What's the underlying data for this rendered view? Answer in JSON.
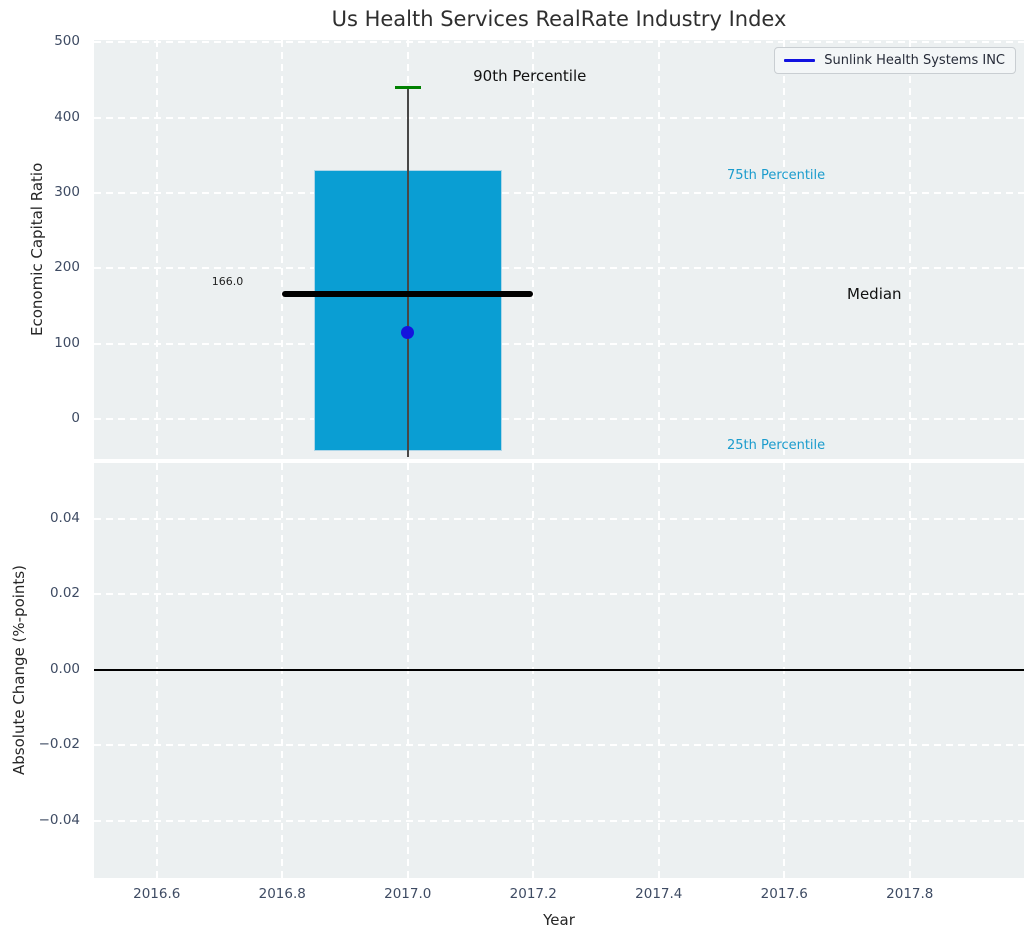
{
  "title": "Us Health Services RealRate Industry Index",
  "xlabel": "Year",
  "legend": {
    "label": "Sunlink Health Systems INC",
    "line_color": "#1212e0"
  },
  "colors": {
    "figure_bg": "#ffffff",
    "plot_bg": "#ecf0f1",
    "grid": "#ffffff",
    "bar_fill": "#0a9ed3",
    "bar_edge": "#aed6e8",
    "median_line": "#000000",
    "whisker": "#474747",
    "p90_cap": "#008000",
    "marker": "#1414dd",
    "percentile_text": "#1b9ccd",
    "tick_text": "#3e4b63",
    "zero_line": "#000000"
  },
  "top_plot": {
    "ylabel": "Economic Capital Ratio",
    "ytick_values": [
      0,
      100,
      200,
      300,
      400,
      500
    ],
    "ytick_labels": [
      "0",
      "100",
      "200",
      "300",
      "400",
      "500"
    ],
    "ylim": [
      -53,
      503
    ],
    "annotations": {
      "p90": "90th Percentile",
      "p75": "75th Percentile",
      "median": "Median",
      "p25": "25th Percentile",
      "median_value": "166.0"
    }
  },
  "bottom_plot": {
    "ylabel": "Absolute Change (%-points)",
    "ytick_values": [
      0.04,
      0.02,
      0,
      -0.02,
      -0.04
    ],
    "ytick_labels": [
      "0.04",
      "0.02",
      "0.00",
      "−0.02",
      "−0.04"
    ],
    "ylim": [
      -0.0551,
      0.0548
    ],
    "zero_value": 0
  },
  "x_axis": {
    "tick_values": [
      2016.6,
      2016.8,
      2017.0,
      2017.2,
      2017.4,
      2017.6,
      2017.8
    ],
    "tick_labels": [
      "2016.6",
      "2016.8",
      "2017.0",
      "2017.2",
      "2017.4",
      "2017.6",
      "2017.8"
    ],
    "xlim": [
      2016.5,
      2017.982
    ]
  },
  "chart_data": [
    {
      "type": "box",
      "title": "Us Health Services RealRate Industry Index",
      "xlabel": "Year",
      "ylabel": "Economic Capital Ratio",
      "xlim": [
        2016.5,
        2017.982
      ],
      "ylim": [
        -53,
        503
      ],
      "xticks": [
        2016.6,
        2016.8,
        2017.0,
        2017.2,
        2017.4,
        2017.6,
        2017.8
      ],
      "yticks": [
        0,
        100,
        200,
        300,
        400,
        500
      ],
      "grid": true,
      "legend_position": "upper right",
      "boxes": [
        {
          "x": 2017.0,
          "box_width": 0.3,
          "q25": -43,
          "q75": 330,
          "median": 166,
          "median_label": "166.0",
          "median_line_halfwidth": 0.2,
          "p90": 440,
          "whisker_low": -50
        }
      ],
      "series": [
        {
          "name": "Sunlink Health Systems INC",
          "type": "scatter",
          "points": [
            {
              "x": 2017.0,
              "y": 115
            }
          ]
        }
      ],
      "annotations": [
        "90th Percentile",
        "75th Percentile",
        "Median",
        "25th Percentile",
        "166.0"
      ]
    },
    {
      "type": "line",
      "xlabel": "Year",
      "ylabel": "Absolute Change (%-points)",
      "xlim": [
        2016.5,
        2017.982
      ],
      "ylim": [
        -0.0551,
        0.0548
      ],
      "xticks": [
        2016.6,
        2016.8,
        2017.0,
        2017.2,
        2017.4,
        2017.6,
        2017.8
      ],
      "yticks": [
        0.04,
        0.02,
        0.0,
        -0.02,
        -0.04
      ],
      "grid": true,
      "zero_line": 0.0,
      "series": []
    }
  ]
}
